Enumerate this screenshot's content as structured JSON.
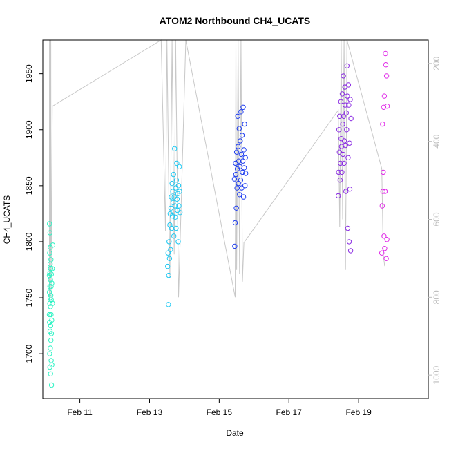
{
  "chart_data": {
    "type": "scatter",
    "title": "ATOM2 Northbound CH4_UCATS",
    "xlabel": "Date",
    "ylabel": "CH4_UCATS",
    "x_ticks": [
      "Feb 11",
      "Feb 13",
      "Feb 15",
      "Feb 17",
      "Feb 19"
    ],
    "y_ticks": [
      "1700",
      "1750",
      "1800",
      "1850",
      "1900",
      "1950"
    ],
    "y2_ticks": [
      "200",
      "400",
      "600",
      "800",
      "1000"
    ],
    "xlim": [
      "2017-02-09T22:30",
      "2017-02-21T00:00"
    ],
    "ylim": [
      1660,
      1980
    ],
    "y2lim": [
      1060,
      140
    ],
    "colors": {
      "flight1": "#2ef3c4",
      "flight2": "#1cc8f2",
      "flight3": "#1e3df0",
      "flight4": "#8a2be2",
      "flight5": "#e02ae8",
      "pressure_line": "#c8c8c8",
      "axis": "#000000",
      "right_axis": "#bdbdbd"
    },
    "pressure_x": [
      "2017-02-10T03:00",
      "2017-02-10T03:05",
      "2017-02-10T03:12",
      "2017-02-10T03:20",
      "2017-02-10T03:30",
      "2017-02-10T03:45",
      "2017-02-10T03:50",
      "2017-02-10T04:00",
      "2017-02-10T04:10",
      "2017-02-10T05:00",
      "2017-02-13T08:00",
      "2017-02-13T11:00",
      "2017-02-13T12:00",
      "2017-02-13T14:00",
      "2017-02-13T15:30",
      "2017-02-13T17:00",
      "2017-02-13T18:00",
      "2017-02-13T20:00",
      "2017-02-14T01:00",
      "2017-02-15T11:00",
      "2017-02-15T11:30",
      "2017-02-15T12:00",
      "2017-02-15T13:00",
      "2017-02-15T14:00",
      "2017-02-15T15:00",
      "2017-02-15T16:00",
      "2017-02-15T17:00",
      "2017-02-18T10:00",
      "2017-02-18T11:00",
      "2017-02-18T12:00",
      "2017-02-18T13:00",
      "2017-02-18T14:00",
      "2017-02-18T15:00",
      "2017-02-18T16:00",
      "2017-02-19T16:00",
      "2017-02-19T17:00",
      "2017-02-19T18:00"
    ],
    "pressure_y": [
      800,
      120,
      800,
      120,
      800,
      120,
      700,
      120,
      800,
      310,
      120,
      630,
      120,
      750,
      120,
      690,
      120,
      800,
      120,
      800,
      120,
      730,
      120,
      740,
      120,
      760,
      660,
      320,
      620,
      120,
      600,
      120,
      730,
      120,
      470,
      690,
      720
    ],
    "series": [
      {
        "color_key": "flight1",
        "x": [
          "2017-02-10T03:00",
          "2017-02-10T03:02",
          "2017-02-10T03:05",
          "2017-02-10T03:07",
          "2017-02-10T03:10",
          "2017-02-10T03:12",
          "2017-02-10T03:15",
          "2017-02-10T03:18",
          "2017-02-10T03:20",
          "2017-02-10T03:22",
          "2017-02-10T03:25",
          "2017-02-10T03:28",
          "2017-02-10T03:30",
          "2017-02-10T03:33",
          "2017-02-10T03:36",
          "2017-02-10T03:40",
          "2017-02-10T03:42",
          "2017-02-10T03:45",
          "2017-02-10T03:48",
          "2017-02-10T03:50",
          "2017-02-10T03:53",
          "2017-02-10T03:56",
          "2017-02-10T04:00",
          "2017-02-10T04:03",
          "2017-02-10T04:06",
          "2017-02-10T04:10",
          "2017-02-10T04:12",
          "2017-02-10T04:15",
          "2017-02-10T04:18",
          "2017-02-10T04:20",
          "2017-02-10T04:25",
          "2017-02-10T04:30",
          "2017-02-10T04:35",
          "2017-02-10T04:40",
          "2017-02-10T04:45",
          "2017-02-10T05:00",
          "2017-02-10T05:10",
          "2017-02-10T05:20"
        ],
        "y": [
          1735,
          1770,
          1755,
          1816,
          1728,
          1700,
          1790,
          1745,
          1772,
          1688,
          1760,
          1808,
          1720,
          1780,
          1750,
          1705,
          1795,
          1742,
          1766,
          1682,
          1776,
          1725,
          1752,
          1712,
          1784,
          1735,
          1760,
          1694,
          1748,
          1771,
          1718,
          1672,
          1730,
          1763,
          1690,
          1776,
          1745,
          1797
        ]
      },
      {
        "color_key": "flight2",
        "x": [
          "2017-02-13T12:30",
          "2017-02-13T12:45",
          "2017-02-13T13:00",
          "2017-02-13T13:15",
          "2017-02-13T13:30",
          "2017-02-13T13:45",
          "2017-02-13T14:00",
          "2017-02-13T14:15",
          "2017-02-13T14:30",
          "2017-02-13T14:45",
          "2017-02-13T15:00",
          "2017-02-13T15:15",
          "2017-02-13T15:30",
          "2017-02-13T15:45",
          "2017-02-13T16:00",
          "2017-02-13T16:15",
          "2017-02-13T16:30",
          "2017-02-13T16:45",
          "2017-02-13T17:00",
          "2017-02-13T17:15",
          "2017-02-13T17:30",
          "2017-02-13T17:45",
          "2017-02-13T18:00",
          "2017-02-13T18:15",
          "2017-02-13T18:30",
          "2017-02-13T18:45",
          "2017-02-13T19:00",
          "2017-02-13T19:15",
          "2017-02-13T19:30",
          "2017-02-13T19:45",
          "2017-02-13T20:00",
          "2017-02-13T20:15",
          "2017-02-13T20:30",
          "2017-02-13T20:45",
          "2017-02-13T21:00"
        ],
        "y": [
          1778,
          1790,
          1744,
          1770,
          1800,
          1785,
          1815,
          1825,
          1793,
          1830,
          1840,
          1812,
          1852,
          1823,
          1845,
          1835,
          1860,
          1805,
          1840,
          1883,
          1832,
          1822,
          1848,
          1812,
          1855,
          1870,
          1838,
          1828,
          1843,
          1800,
          1850,
          1832,
          1867,
          1845,
          1826
        ]
      },
      {
        "color_key": "flight3",
        "x": [
          "2017-02-15T10:30",
          "2017-02-15T10:45",
          "2017-02-15T11:00",
          "2017-02-15T11:15",
          "2017-02-15T11:30",
          "2017-02-15T11:45",
          "2017-02-15T12:00",
          "2017-02-15T12:15",
          "2017-02-15T12:30",
          "2017-02-15T12:45",
          "2017-02-15T13:00",
          "2017-02-15T13:15",
          "2017-02-15T13:30",
          "2017-02-15T13:45",
          "2017-02-15T14:00",
          "2017-02-15T14:15",
          "2017-02-15T14:30",
          "2017-02-15T14:45",
          "2017-02-15T15:00",
          "2017-02-15T15:15",
          "2017-02-15T15:30",
          "2017-02-15T15:45",
          "2017-02-15T16:00",
          "2017-02-15T16:15",
          "2017-02-15T16:30",
          "2017-02-15T16:45",
          "2017-02-15T17:00",
          "2017-02-15T17:15",
          "2017-02-15T17:30",
          "2017-02-15T17:45",
          "2017-02-15T18:00",
          "2017-02-15T18:15"
        ],
        "y": [
          1856,
          1796,
          1817,
          1870,
          1860,
          1830,
          1880,
          1848,
          1865,
          1912,
          1885,
          1852,
          1872,
          1901,
          1842,
          1867,
          1890,
          1855,
          1916,
          1878,
          1848,
          1895,
          1862,
          1872,
          1920,
          1840,
          1882,
          1866,
          1905,
          1850,
          1875,
          1861
        ]
      },
      {
        "color_key": "flight4",
        "x": [
          "2017-02-18T10:00",
          "2017-02-18T10:15",
          "2017-02-18T10:30",
          "2017-02-18T10:45",
          "2017-02-18T11:00",
          "2017-02-18T11:15",
          "2017-02-18T11:30",
          "2017-02-18T11:45",
          "2017-02-18T12:00",
          "2017-02-18T12:15",
          "2017-02-18T12:30",
          "2017-02-18T12:45",
          "2017-02-18T13:00",
          "2017-02-18T13:15",
          "2017-02-18T13:30",
          "2017-02-18T13:45",
          "2017-02-18T14:00",
          "2017-02-18T14:15",
          "2017-02-18T14:30",
          "2017-02-18T14:45",
          "2017-02-18T15:00",
          "2017-02-18T15:15",
          "2017-02-18T15:30",
          "2017-02-18T15:45",
          "2017-02-18T16:00",
          "2017-02-18T16:15",
          "2017-02-18T16:30",
          "2017-02-18T16:45",
          "2017-02-18T17:00",
          "2017-02-18T17:15",
          "2017-02-18T17:30",
          "2017-02-18T17:45",
          "2017-02-18T18:00",
          "2017-02-18T18:15",
          "2017-02-18T18:30",
          "2017-02-18T18:45"
        ],
        "y": [
          1841,
          1862,
          1900,
          1880,
          1912,
          1855,
          1870,
          1925,
          1892,
          1885,
          1862,
          1932,
          1905,
          1878,
          1948,
          1912,
          1870,
          1890,
          1938,
          1922,
          1886,
          1845,
          1915,
          1900,
          1957,
          1930,
          1812,
          1875,
          1940,
          1922,
          1800,
          1888,
          1847,
          1927,
          1792,
          1910
        ]
      },
      {
        "color_key": "flight5",
        "x": [
          "2017-02-19T16:00",
          "2017-02-19T16:15",
          "2017-02-19T16:30",
          "2017-02-19T16:45",
          "2017-02-19T17:00",
          "2017-02-19T17:15",
          "2017-02-19T17:30",
          "2017-02-19T17:45",
          "2017-02-19T18:00",
          "2017-02-19T18:15",
          "2017-02-19T18:30",
          "2017-02-19T18:45",
          "2017-02-19T19:00",
          "2017-02-19T19:15",
          "2017-02-19T19:30",
          "2017-02-19T19:45"
        ],
        "y": [
          1790,
          1832,
          1905,
          1845,
          1862,
          1920,
          1805,
          1930,
          1794,
          1845,
          1968,
          1958,
          1785,
          1948,
          1802,
          1921
        ]
      }
    ]
  }
}
